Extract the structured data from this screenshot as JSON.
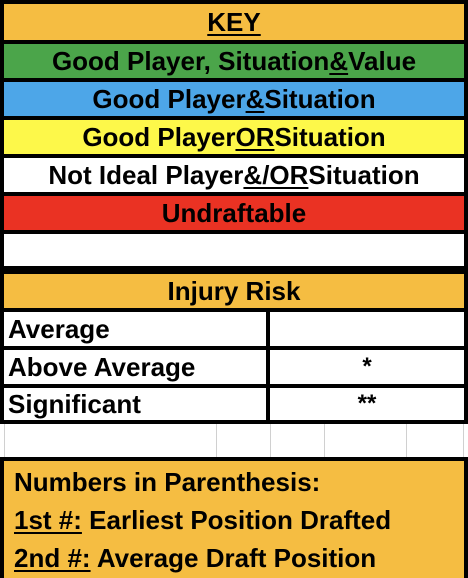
{
  "key": {
    "title": "KEY",
    "rows": [
      {
        "parts": [
          "Good Player, Situation ",
          "&",
          " Value"
        ],
        "color": "#4ba54a"
      },
      {
        "parts": [
          "Good Player ",
          "&",
          " Situation"
        ],
        "color": "#4da6e8"
      },
      {
        "parts": [
          "Good Player ",
          "OR",
          " Situation"
        ],
        "color": "#fdf84a"
      },
      {
        "parts": [
          "Not Ideal Player ",
          "&/OR",
          " Situation"
        ],
        "color": "#ffffff"
      },
      {
        "parts": [
          "Undraftable",
          "",
          ""
        ],
        "color": "#ea3223"
      }
    ]
  },
  "injury_risk": {
    "title": "Injury Risk",
    "rows": [
      {
        "label": "Average",
        "mark": ""
      },
      {
        "label": "Above Average",
        "mark": "*"
      },
      {
        "label": "Significant",
        "mark": "**"
      }
    ]
  },
  "numbers_note": {
    "heading": "Numbers in Parenthesis:",
    "first_key": "1st #:",
    "first_value": " Earliest Position Drafted",
    "second_key": "2nd #:",
    "second_value": " Average Draft Position"
  },
  "colors": {
    "header_orange": "#f5bd42",
    "green": "#4ba54a",
    "blue": "#4da6e8",
    "yellow": "#fdf84a",
    "red": "#ea3223"
  }
}
